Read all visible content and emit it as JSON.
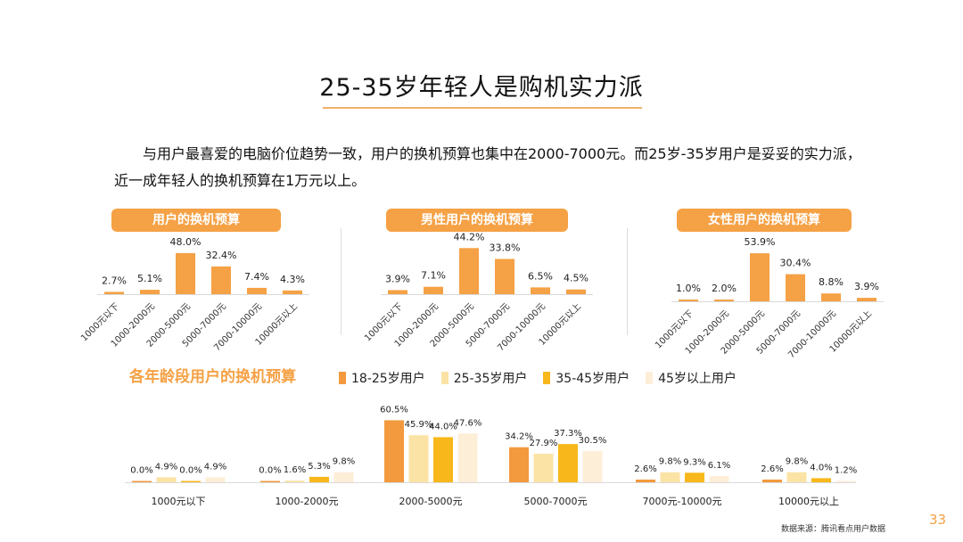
{
  "title": "25-35岁年轻人是购机实力派",
  "intro": "与用户最喜爱的电脑价位趋势一致，用户的换机预算也集中在2000-7000元。而25岁-35岁用户是妥妥的实力派，近一成年轻人的换机预算在1万元以上。",
  "colors": {
    "accent": "#f5a145",
    "bar_main": "#f5a145",
    "age1": "#f39a3e",
    "age2": "#fbe3a6",
    "age3": "#f8b81b",
    "age4": "#fdeed8"
  },
  "chart_data": [
    {
      "type": "bar",
      "title": "用户的换机预算",
      "categories": [
        "1000元以下",
        "1000-2000元",
        "2000-5000元",
        "5000-7000元",
        "7000-10000元",
        "10000元以上"
      ],
      "values": [
        2.7,
        5.1,
        48.0,
        32.4,
        7.4,
        4.3
      ],
      "labels": [
        "2.7%",
        "5.1%",
        "48.0%",
        "32.4%",
        "7.4%",
        "4.3%"
      ]
    },
    {
      "type": "bar",
      "title": "男性用户的换机预算",
      "categories": [
        "1000元以下",
        "1000-2000元",
        "2000-5000元",
        "5000-7000元",
        "7000-10000元",
        "10000元以上"
      ],
      "values": [
        3.9,
        7.1,
        44.2,
        33.8,
        6.5,
        4.5
      ],
      "labels": [
        "3.9%",
        "7.1%",
        "44.2%",
        "33.8%",
        "6.5%",
        "4.5%"
      ]
    },
    {
      "type": "bar",
      "title": "女性用户的换机预算",
      "categories": [
        "1000元以下",
        "1000-2000元",
        "2000-5000元",
        "5000-7000元",
        "7000-10000元",
        "10000元以上"
      ],
      "values": [
        1.0,
        2.0,
        53.9,
        30.4,
        8.8,
        3.9
      ],
      "labels": [
        "1.0%",
        "2.0%",
        "53.9%",
        "30.4%",
        "8.8%",
        "3.9%"
      ]
    },
    {
      "type": "bar",
      "title": "各年龄段用户的换机预算",
      "categories": [
        "1000元以下",
        "1000-2000元",
        "2000-5000元",
        "5000-7000元",
        "7000元-10000元",
        "10000元以上"
      ],
      "series": [
        {
          "name": "18-25岁用户",
          "values": [
            0.0,
            0.0,
            60.5,
            34.2,
            2.6,
            2.6
          ],
          "labels": [
            "0.0%",
            "0.0%",
            "60.5%",
            "34.2%",
            "2.6%",
            "2.6%"
          ]
        },
        {
          "name": "25-35岁用户",
          "values": [
            4.9,
            1.6,
            45.9,
            27.9,
            9.8,
            9.8
          ],
          "labels": [
            "4.9%",
            "1.6%",
            "45.9%",
            "27.9%",
            "9.8%",
            "9.8%"
          ]
        },
        {
          "name": "35-45岁用户",
          "values": [
            0.0,
            5.3,
            44.0,
            37.3,
            9.3,
            4.0
          ],
          "labels": [
            "0.0%",
            "5.3%",
            "44.0%",
            "37.3%",
            "9.3%",
            "4.0%"
          ]
        },
        {
          "name": "45岁以上用户",
          "values": [
            4.9,
            9.8,
            47.6,
            30.5,
            6.1,
            1.2
          ],
          "labels": [
            "4.9%",
            "9.8%",
            "47.6%",
            "30.5%",
            "6.1%",
            "1.2%"
          ]
        }
      ]
    }
  ],
  "source": "数据来源：腾讯看点用户数据",
  "page_number": "33"
}
